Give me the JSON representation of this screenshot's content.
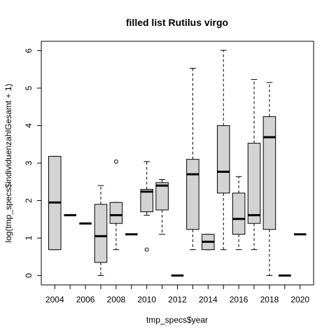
{
  "chart_data": {
    "type": "boxplot",
    "title": "filled list Rutilus virgo",
    "xlabel": "tmp_specs$year",
    "ylabel": "log(tmp_specs$individuenzahlGesamt + 1)",
    "ylim": [
      -0.25,
      6.25
    ],
    "yticks": [
      0,
      1,
      2,
      3,
      4,
      5,
      6
    ],
    "xtick_labels": [
      "2004",
      "2006",
      "2008",
      "2010",
      "2012",
      "2014",
      "2016",
      "2018",
      "2020"
    ],
    "boxes": [
      {
        "year": 2004,
        "min": 0.69,
        "q1": 0.69,
        "median": 1.95,
        "q3": 3.18,
        "max": 3.18,
        "outliers": []
      },
      {
        "year": 2005,
        "min": 1.61,
        "q1": 1.61,
        "median": 1.61,
        "q3": 1.61,
        "max": 1.61,
        "outliers": []
      },
      {
        "year": 2006,
        "min": 1.39,
        "q1": 1.39,
        "median": 1.39,
        "q3": 1.39,
        "max": 1.39,
        "outliers": []
      },
      {
        "year": 2007,
        "min": 0.0,
        "q1": 0.35,
        "median": 1.05,
        "q3": 1.9,
        "max": 2.4,
        "outliers": []
      },
      {
        "year": 2008,
        "min": 0.69,
        "q1": 1.39,
        "median": 1.61,
        "q3": 1.95,
        "max": 1.95,
        "outliers": [
          3.04
        ]
      },
      {
        "year": 2009,
        "min": 1.1,
        "q1": 1.1,
        "median": 1.1,
        "q3": 1.1,
        "max": 1.1,
        "outliers": []
      },
      {
        "year": 2010,
        "min": 1.61,
        "q1": 1.7,
        "median": 2.24,
        "q3": 2.3,
        "max": 3.04,
        "outliers": [
          0.69
        ]
      },
      {
        "year": 2011,
        "min": 1.1,
        "q1": 1.75,
        "median": 2.4,
        "q3": 2.48,
        "max": 2.56,
        "outliers": []
      },
      {
        "year": 2012,
        "min": 0.0,
        "q1": 0.0,
        "median": 0.0,
        "q3": 0.0,
        "max": 0.0,
        "outliers": []
      },
      {
        "year": 2013,
        "min": 0.69,
        "q1": 1.23,
        "median": 2.7,
        "q3": 3.1,
        "max": 5.53,
        "outliers": []
      },
      {
        "year": 2014,
        "min": 0.69,
        "q1": 0.69,
        "median": 0.9,
        "q3": 1.1,
        "max": 1.1,
        "outliers": []
      },
      {
        "year": 2015,
        "min": 0.69,
        "q1": 2.2,
        "median": 2.77,
        "q3": 4.0,
        "max": 6.01,
        "outliers": []
      },
      {
        "year": 2016,
        "min": 0.69,
        "q1": 1.1,
        "median": 1.51,
        "q3": 2.2,
        "max": 2.64,
        "outliers": []
      },
      {
        "year": 2017,
        "min": 0.69,
        "q1": 1.39,
        "median": 1.61,
        "q3": 3.53,
        "max": 5.23,
        "outliers": []
      },
      {
        "year": 2018,
        "min": 0.0,
        "q1": 1.23,
        "median": 3.69,
        "q3": 4.24,
        "max": 5.15,
        "outliers": []
      },
      {
        "year": 2019,
        "min": 0.0,
        "q1": 0.0,
        "median": 0.0,
        "q3": 0.0,
        "max": 0.0,
        "outliers": []
      },
      {
        "year": 2020,
        "min": 1.1,
        "q1": 1.1,
        "median": 1.1,
        "q3": 1.1,
        "max": 1.1,
        "outliers": []
      }
    ],
    "box_fill": "#d3d3d3",
    "line_color": "#000000",
    "grid": false,
    "legend": "none"
  }
}
